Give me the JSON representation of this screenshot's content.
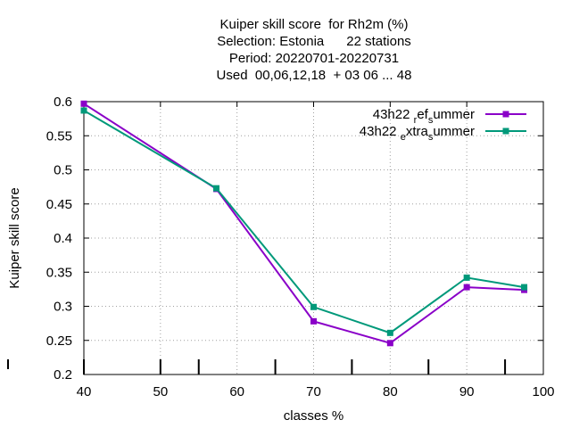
{
  "chart_data": {
    "type": "line",
    "title_lines": [
      "Kuiper skill score  for Rh2m (%)",
      "Selection: Estonia      22 stations",
      "Period: 20220701-20220731",
      "Used  00,06,12,18  + 03 06 ... 48"
    ],
    "xlabel": "classes %",
    "ylabel": "Kuiper skill score",
    "xlim": [
      40,
      100
    ],
    "ylim": [
      0.2,
      0.6
    ],
    "xticks": [
      "40",
      "50",
      "60",
      "70",
      "80",
      "90",
      "100"
    ],
    "yticks": [
      "0.2",
      "0.25",
      "0.3",
      "0.35",
      "0.4",
      "0.45",
      "0.5",
      "0.55",
      "0.6"
    ],
    "grid": true,
    "legend_position": "top-right",
    "bottom_tick_marks_x": [
      40,
      50,
      55,
      65,
      75,
      85,
      95
    ],
    "series": [
      {
        "name": "43h22 _ref_summer",
        "legend_label": {
          "base": "43h22 ",
          "sub1": "r",
          "mid": "ef",
          "sub2": "s",
          "tail": "ummer"
        },
        "color": "#8a00c8",
        "x": [
          40,
          57.3,
          70,
          80,
          90,
          97.5
        ],
        "values": [
          0.597,
          0.472,
          0.278,
          0.246,
          0.328,
          0.324
        ]
      },
      {
        "name": "43h22 _extra_summer",
        "legend_label": {
          "base": "43h22 ",
          "sub1": "e",
          "mid": "xtra",
          "sub2": "s",
          "tail": "ummer"
        },
        "color": "#00997a",
        "x": [
          40,
          57.3,
          70,
          80,
          90,
          97.5
        ],
        "values": [
          0.587,
          0.473,
          0.299,
          0.261,
          0.342,
          0.328
        ]
      }
    ]
  }
}
